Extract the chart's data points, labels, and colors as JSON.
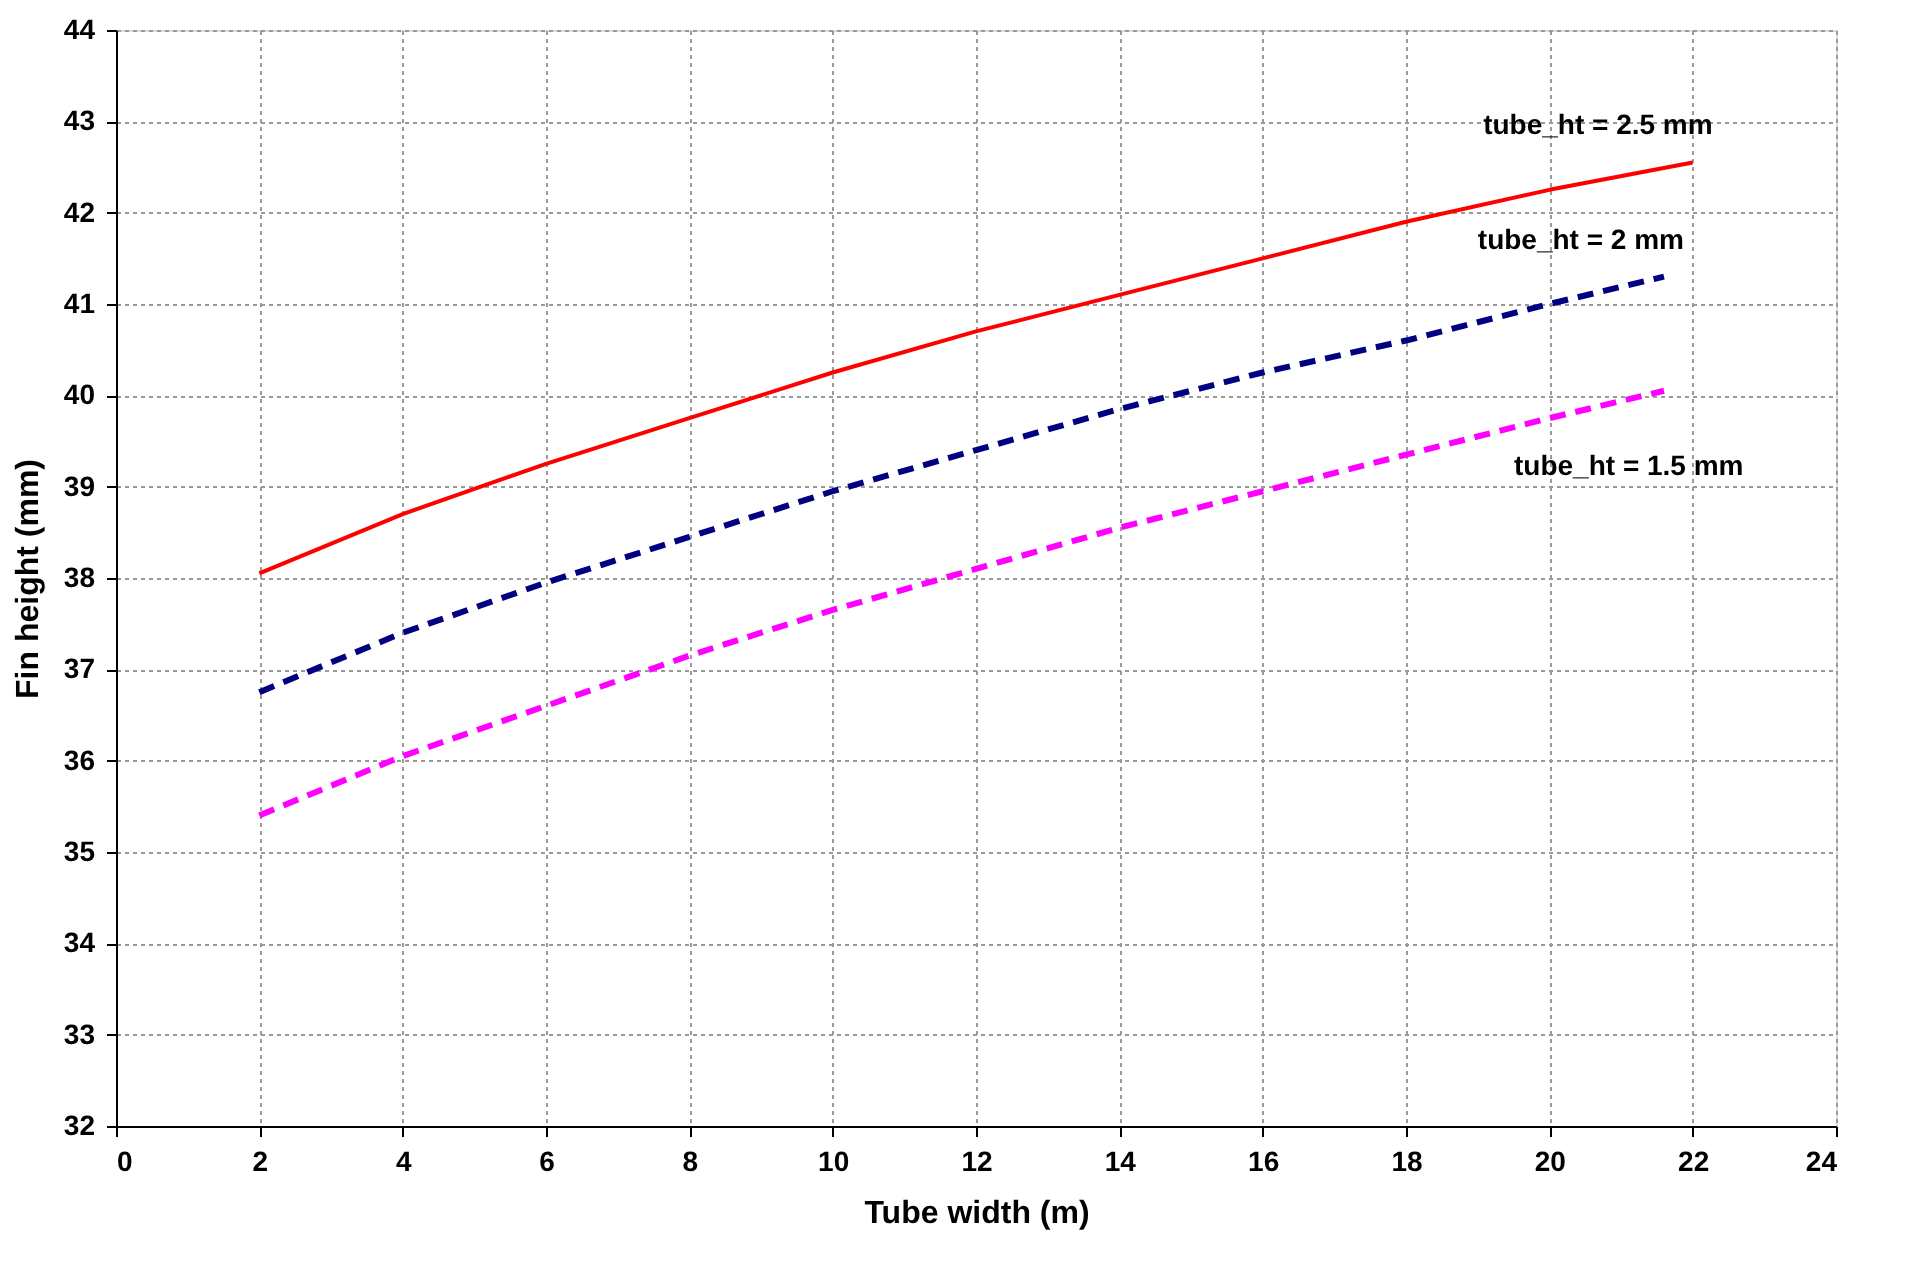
{
  "chart_data": {
    "type": "line",
    "xlabel": "Tube width (m)",
    "ylabel": "Fin height (mm)",
    "xlim": [
      0,
      24
    ],
    "xticks": [
      0,
      2,
      4,
      6,
      8,
      10,
      12,
      14,
      16,
      18,
      20,
      22,
      24
    ],
    "ylim": [
      32,
      44
    ],
    "yticks": [
      32,
      33,
      34,
      35,
      36,
      37,
      38,
      39,
      40,
      41,
      42,
      43,
      44
    ],
    "grid": true,
    "series": [
      {
        "name": "tube_ht = 2.5 mm",
        "color": "#ff0000",
        "line_style": "solid",
        "x": [
          2,
          4,
          6,
          8,
          10,
          12,
          14,
          16,
          18,
          20,
          22
        ],
        "values": [
          38.05,
          38.7,
          39.25,
          39.75,
          40.25,
          40.7,
          41.1,
          41.5,
          41.9,
          42.25,
          42.55
        ]
      },
      {
        "name": "tube_ht = 2 mm",
        "color": "#000080",
        "line_style": "dashed",
        "x": [
          2,
          4,
          6,
          8,
          10,
          12,
          14,
          16,
          18,
          20,
          21.6
        ],
        "values": [
          36.75,
          37.4,
          37.95,
          38.45,
          38.95,
          39.4,
          39.85,
          40.25,
          40.6,
          41.0,
          41.3
        ]
      },
      {
        "name": "tube_ht = 1.5 mm",
        "color": "#ff00ff",
        "line_style": "dashed",
        "x": [
          2,
          4,
          6,
          8,
          10,
          12,
          14,
          16,
          18,
          20,
          21.6
        ],
        "values": [
          35.4,
          36.05,
          36.6,
          37.15,
          37.65,
          38.1,
          38.55,
          38.95,
          39.35,
          39.75,
          40.05
        ]
      }
    ]
  }
}
